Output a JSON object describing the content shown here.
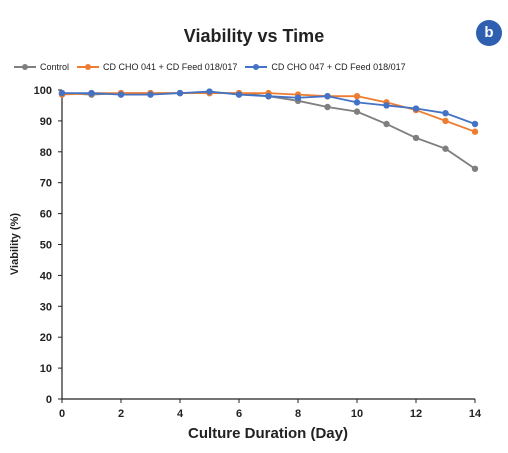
{
  "badge": "b",
  "chart_data": {
    "type": "line",
    "title": "Viability vs Time",
    "xlabel": "Culture Duration (Day)",
    "ylabel": "Viability (%)",
    "xlim": [
      0,
      14
    ],
    "ylim": [
      0,
      100
    ],
    "xticks": [
      0,
      2,
      4,
      6,
      8,
      10,
      12,
      14
    ],
    "yticks": [
      0,
      10,
      20,
      30,
      40,
      50,
      60,
      70,
      80,
      90,
      100
    ],
    "grid": false,
    "legend": "top",
    "x": [
      0,
      1,
      2,
      3,
      4,
      5,
      6,
      7,
      8,
      9,
      10,
      11,
      12,
      13,
      14
    ],
    "series": [
      {
        "name": "Control",
        "color": "#7f7f7f",
        "values": [
          99,
          98.5,
          99,
          99,
          99,
          99,
          99,
          98,
          96.5,
          94.5,
          93,
          89,
          84.5,
          81,
          74.5
        ]
      },
      {
        "name": "CD CHO 041 + CD Feed 018/017",
        "color": "#ed7d31",
        "values": [
          98.5,
          99,
          99,
          99,
          99,
          99,
          99,
          99,
          98.5,
          98,
          98,
          96,
          93.5,
          90,
          86.5
        ]
      },
      {
        "name": "CD CHO 047 + CD Feed 018/017",
        "color": "#4472c4",
        "values": [
          99,
          99,
          98.5,
          98.5,
          99,
          99.5,
          98.5,
          98,
          97.5,
          98,
          96,
          95,
          94,
          92.5,
          89
        ]
      }
    ]
  }
}
